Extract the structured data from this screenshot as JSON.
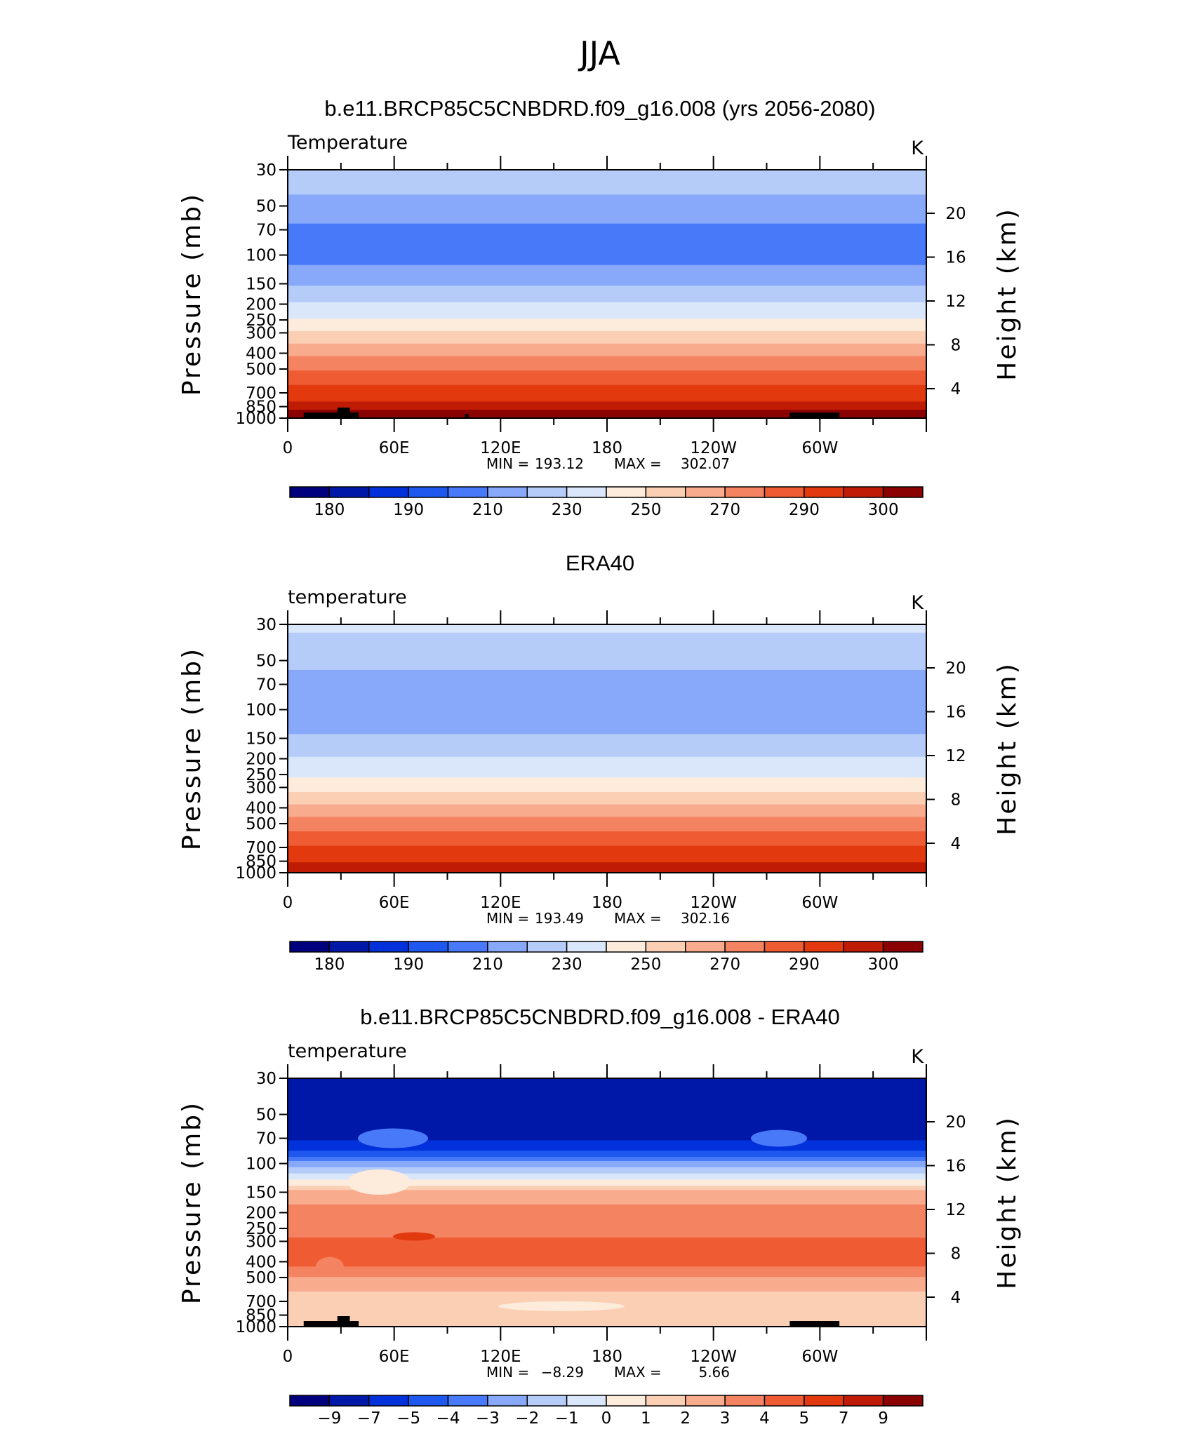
{
  "main_title": "JJA",
  "shared_axes": {
    "x_ticks": [
      "0",
      "60E",
      "120E",
      "180",
      "120W",
      "60W"
    ],
    "left_ticks": [
      "30",
      "50",
      "70",
      "100",
      "150",
      "200",
      "250",
      "300",
      "400",
      "500",
      "700",
      "850",
      "1000"
    ],
    "right_ticks": [
      "20",
      "16",
      "12",
      "8",
      "4"
    ],
    "ylabel_left": "Pressure  (mb)",
    "ylabel_right": "Height  (km)"
  },
  "chart_data": [
    {
      "type": "heatmap",
      "title": "b.e11.BRCP85C5CNBDRD.f09_g16.008 (yrs 2056-2080)",
      "left_string": "Temperature",
      "right_string": "K",
      "x_range": [
        0,
        360
      ],
      "y_range_mb": [
        1000,
        30
      ],
      "y_scale": "log",
      "pressure_levels": [
        1000,
        850,
        700,
        500,
        400,
        300,
        250,
        200,
        150,
        100,
        70,
        50,
        30
      ],
      "profile_K": [
        299,
        294,
        285,
        270,
        258,
        243,
        232,
        222,
        210,
        195,
        197,
        208,
        214
      ],
      "stats": {
        "min_label": "MIN =",
        "min": "193.12",
        "max_label": "MAX =",
        "max": "302.07"
      },
      "topography": true,
      "colorbar": {
        "labels": [
          "180",
          "190",
          "210",
          "230",
          "250",
          "270",
          "290",
          "300"
        ],
        "levels": [
          175,
          180,
          185,
          190,
          200,
          210,
          220,
          230,
          240,
          250,
          260,
          270,
          280,
          290,
          295,
          300
        ]
      }
    },
    {
      "type": "heatmap",
      "title": "ERA40",
      "left_string": "temperature",
      "right_string": "K",
      "x_range": [
        0,
        360
      ],
      "y_range_mb": [
        1000,
        30
      ],
      "y_scale": "log",
      "pressure_levels": [
        1000,
        850,
        700,
        500,
        400,
        300,
        250,
        200,
        150,
        100,
        70,
        50,
        30
      ],
      "profile_K": [
        296,
        290,
        282,
        266,
        254,
        238,
        228,
        221,
        212,
        200,
        205,
        213,
        222
      ],
      "stats": {
        "min_label": "MIN =",
        "min": "193.49",
        "max_label": "MAX =",
        "max": "302.16"
      },
      "topography": false,
      "colorbar": {
        "labels": [
          "180",
          "190",
          "210",
          "230",
          "250",
          "270",
          "290",
          "300"
        ],
        "levels": [
          175,
          180,
          185,
          190,
          200,
          210,
          220,
          230,
          240,
          250,
          260,
          270,
          280,
          290,
          295,
          300
        ]
      }
    },
    {
      "type": "heatmap",
      "title": "b.e11.BRCP85C5CNBDRD.f09_g16.008 - ERA40",
      "left_string": "temperature",
      "right_string": "K",
      "x_range": [
        0,
        360
      ],
      "y_range_mb": [
        1000,
        30
      ],
      "y_scale": "log",
      "pressure_levels": [
        1000,
        850,
        700,
        500,
        400,
        300,
        250,
        200,
        150,
        100,
        70,
        50,
        30
      ],
      "profile_K": [
        1.2,
        1.5,
        1.2,
        2.8,
        4.5,
        4.2,
        3.6,
        3.4,
        2.4,
        -2.5,
        -7.2,
        -7.4,
        -8.0
      ],
      "stats": {
        "min_label": "MIN =",
        "min": "−8.29",
        "max_label": "MAX =",
        "max": "5.66"
      },
      "topography": true,
      "colorbar": {
        "labels": [
          "−9",
          "−7",
          "−5",
          "−4",
          "−3",
          "−2",
          "−1",
          "0",
          "1",
          "2",
          "3",
          "4",
          "5",
          "7",
          "9"
        ],
        "levels": [
          -9,
          -7,
          -5,
          -4,
          -3,
          -2,
          -1,
          0,
          1,
          2,
          3,
          4,
          5,
          7,
          9
        ]
      }
    }
  ],
  "colorbar_colors": [
    "#00007e",
    "#0018a8",
    "#0031db",
    "#1e58ee",
    "#4879f8",
    "#88a8f9",
    "#b6ccf8",
    "#dae7fb",
    "#fdebdc",
    "#fbcfb4",
    "#f8ab8d",
    "#f48461",
    "#ef5c34",
    "#e3390e",
    "#bf1b05",
    "#8a0202"
  ]
}
